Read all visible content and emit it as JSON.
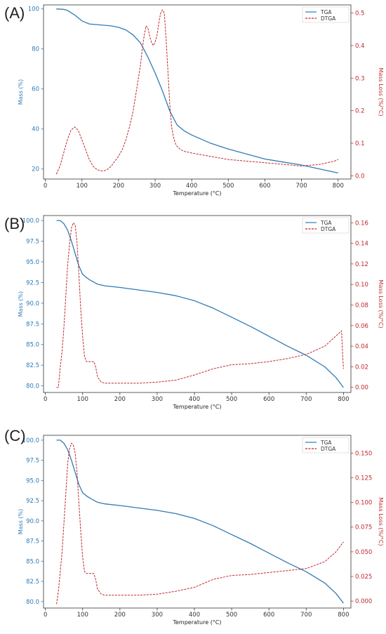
{
  "colors": {
    "tga": "#2f7bb5",
    "dtga": "#c0272d",
    "axis": "#333333"
  },
  "chart_data": [
    {
      "panel_label": "(A)",
      "type": "line",
      "xlabel": "Temperature (°C)",
      "ylabel": "Mass (%)",
      "y2label": "Mass Loss (%/°C)",
      "xlim": [
        -5,
        835
      ],
      "ylim": [
        15,
        102
      ],
      "y2lim": [
        -0.01,
        0.525
      ],
      "xticks": [
        0,
        100,
        200,
        300,
        400,
        500,
        600,
        700,
        800
      ],
      "yticks": [
        20,
        40,
        60,
        80,
        100
      ],
      "y2ticks": [
        0.0,
        0.1,
        0.2,
        0.3,
        0.4,
        0.5
      ],
      "xtick_labels": [
        "0",
        "100",
        "200",
        "300",
        "400",
        "500",
        "600",
        "700",
        "800"
      ],
      "ytick_labels": [
        "20",
        "40",
        "60",
        "80",
        "100"
      ],
      "y2tick_labels": [
        "0.0",
        "0.1",
        "0.2",
        "0.3",
        "0.4",
        "0.5"
      ],
      "legend": [
        "TGA",
        "DTGA"
      ],
      "legend_position": "top-right",
      "series": [
        {
          "name": "TGA",
          "axis": "left",
          "style": "solid",
          "x": [
            30,
            50,
            60,
            80,
            100,
            120,
            150,
            180,
            200,
            220,
            240,
            260,
            280,
            300,
            320,
            340,
            360,
            380,
            400,
            450,
            500,
            550,
            600,
            650,
            700,
            750,
            800
          ],
          "y": [
            100,
            99.8,
            99.3,
            97,
            94,
            92.5,
            92,
            91.5,
            90.8,
            89.5,
            87,
            83,
            76,
            68,
            59,
            49,
            42,
            39,
            37,
            33,
            30,
            27.5,
            25,
            23.5,
            22,
            20,
            18
          ]
        },
        {
          "name": "DTGA",
          "axis": "right",
          "style": "dashed",
          "x": [
            30,
            40,
            50,
            60,
            70,
            80,
            90,
            100,
            110,
            120,
            130,
            140,
            150,
            160,
            170,
            180,
            190,
            200,
            210,
            220,
            230,
            240,
            250,
            260,
            265,
            270,
            275,
            280,
            285,
            290,
            295,
            300,
            305,
            310,
            315,
            320,
            325,
            330,
            335,
            340,
            345,
            350,
            355,
            360,
            370,
            380,
            400,
            450,
            500,
            550,
            600,
            650,
            700,
            750,
            790,
            800
          ],
          "y": [
            0.005,
            0.03,
            0.07,
            0.11,
            0.14,
            0.15,
            0.14,
            0.11,
            0.08,
            0.05,
            0.03,
            0.02,
            0.015,
            0.015,
            0.02,
            0.03,
            0.045,
            0.06,
            0.08,
            0.11,
            0.15,
            0.2,
            0.27,
            0.34,
            0.39,
            0.43,
            0.46,
            0.455,
            0.43,
            0.41,
            0.4,
            0.41,
            0.43,
            0.47,
            0.5,
            0.51,
            0.5,
            0.42,
            0.32,
            0.22,
            0.15,
            0.12,
            0.1,
            0.09,
            0.08,
            0.075,
            0.07,
            0.06,
            0.05,
            0.045,
            0.04,
            0.035,
            0.03,
            0.035,
            0.045,
            0.05
          ]
        }
      ]
    },
    {
      "panel_label": "(B)",
      "type": "line",
      "xlabel": "Temperature (°C)",
      "ylabel": "Mass (%)",
      "y2label": "Mass Loss (%/°C)",
      "xlim": [
        -5,
        820
      ],
      "ylim": [
        79.2,
        100.6
      ],
      "y2lim": [
        -0.005,
        0.167
      ],
      "xticks": [
        0,
        100,
        200,
        300,
        400,
        500,
        600,
        700,
        800
      ],
      "yticks": [
        80.0,
        82.5,
        85.0,
        87.5,
        90.0,
        92.5,
        95.0,
        97.5,
        100.0
      ],
      "y2ticks": [
        0.0,
        0.02,
        0.04,
        0.06,
        0.08,
        0.1,
        0.12,
        0.14,
        0.16
      ],
      "xtick_labels": [
        "0",
        "100",
        "200",
        "300",
        "400",
        "500",
        "600",
        "700",
        "800"
      ],
      "ytick_labels": [
        "80.0",
        "82.5",
        "85.0",
        "87.5",
        "90.0",
        "92.5",
        "95.0",
        "97.5",
        "100.0"
      ],
      "y2tick_labels": [
        "0.00",
        "0.02",
        "0.04",
        "0.06",
        "0.08",
        "0.10",
        "0.12",
        "0.14",
        "0.16"
      ],
      "legend": [
        "TGA",
        "DTGA"
      ],
      "legend_position": "top-right",
      "series": [
        {
          "name": "TGA",
          "axis": "left",
          "style": "solid",
          "x": [
            30,
            40,
            50,
            60,
            70,
            80,
            90,
            100,
            110,
            120,
            140,
            160,
            200,
            250,
            300,
            350,
            400,
            450,
            500,
            550,
            600,
            650,
            700,
            750,
            780,
            800
          ],
          "y": [
            100,
            100,
            99.6,
            98.8,
            97.5,
            96,
            94.5,
            93.5,
            93.1,
            92.8,
            92.3,
            92.1,
            91.9,
            91.6,
            91.3,
            90.9,
            90.3,
            89.4,
            88.3,
            87.2,
            86.0,
            84.8,
            83.7,
            82.3,
            81.0,
            79.8
          ]
        },
        {
          "name": "DTGA",
          "axis": "right",
          "style": "dashed",
          "x": [
            30,
            35,
            40,
            45,
            50,
            55,
            60,
            65,
            70,
            75,
            80,
            85,
            90,
            95,
            100,
            105,
            110,
            120,
            130,
            135,
            140,
            150,
            160,
            180,
            200,
            250,
            300,
            350,
            400,
            450,
            500,
            550,
            600,
            650,
            700,
            750,
            780,
            795,
            798,
            800
          ],
          "y": [
            0.0,
            0.0,
            0.02,
            0.035,
            0.06,
            0.09,
            0.12,
            0.14,
            0.155,
            0.16,
            0.158,
            0.14,
            0.11,
            0.075,
            0.05,
            0.03,
            0.025,
            0.025,
            0.025,
            0.02,
            0.01,
            0.005,
            0.004,
            0.004,
            0.004,
            0.004,
            0.005,
            0.007,
            0.012,
            0.018,
            0.022,
            0.023,
            0.025,
            0.028,
            0.032,
            0.04,
            0.05,
            0.055,
            0.03,
            0.018
          ]
        }
      ]
    },
    {
      "panel_label": "(C)",
      "type": "line",
      "xlabel": "Temperature (°C)",
      "ylabel": "Mass (%)",
      "y2label": "Mass Loss (%/°C)",
      "xlim": [
        -5,
        820
      ],
      "ylim": [
        79.2,
        100.6
      ],
      "y2lim": [
        -0.007,
        0.168
      ],
      "xticks": [
        0,
        100,
        200,
        300,
        400,
        500,
        600,
        700,
        800
      ],
      "yticks": [
        80.0,
        82.5,
        85.0,
        87.5,
        90.0,
        92.5,
        95.0,
        97.5,
        100.0
      ],
      "y2ticks": [
        0.0,
        0.025,
        0.05,
        0.075,
        0.1,
        0.125,
        0.15
      ],
      "xtick_labels": [
        "0",
        "100",
        "200",
        "300",
        "400",
        "500",
        "600",
        "700",
        "800"
      ],
      "ytick_labels": [
        "80.0",
        "82.5",
        "85.0",
        "87.5",
        "90.0",
        "92.5",
        "95.0",
        "97.5",
        "100.0"
      ],
      "y2tick_labels": [
        "0.000",
        "0.025",
        "0.050",
        "0.075",
        "0.100",
        "0.125",
        "0.150"
      ],
      "legend": [
        "TGA",
        "DTGA"
      ],
      "legend_position": "top-right",
      "series": [
        {
          "name": "TGA",
          "axis": "left",
          "style": "solid",
          "x": [
            30,
            40,
            50,
            60,
            70,
            80,
            90,
            100,
            110,
            120,
            140,
            160,
            200,
            250,
            300,
            350,
            400,
            450,
            500,
            550,
            600,
            650,
            700,
            750,
            780,
            800
          ],
          "y": [
            100,
            100,
            99.6,
            98.8,
            97.5,
            96,
            94.5,
            93.5,
            93.1,
            92.8,
            92.3,
            92.1,
            91.9,
            91.6,
            91.3,
            90.9,
            90.3,
            89.4,
            88.3,
            87.2,
            86.0,
            84.8,
            83.7,
            82.3,
            81.0,
            79.8
          ]
        },
        {
          "name": "DTGA",
          "axis": "right",
          "style": "dashed",
          "x": [
            30,
            35,
            40,
            45,
            50,
            55,
            60,
            65,
            70,
            75,
            80,
            85,
            90,
            95,
            100,
            105,
            110,
            120,
            130,
            135,
            140,
            150,
            160,
            180,
            200,
            250,
            300,
            350,
            400,
            450,
            500,
            550,
            600,
            650,
            700,
            750,
            780,
            800
          ],
          "y": [
            -0.003,
            0.01,
            0.03,
            0.05,
            0.08,
            0.11,
            0.14,
            0.155,
            0.16,
            0.158,
            0.15,
            0.13,
            0.1,
            0.07,
            0.045,
            0.03,
            0.028,
            0.028,
            0.028,
            0.022,
            0.012,
            0.007,
            0.006,
            0.006,
            0.006,
            0.006,
            0.007,
            0.01,
            0.014,
            0.022,
            0.026,
            0.027,
            0.029,
            0.031,
            0.033,
            0.04,
            0.05,
            0.06
          ]
        }
      ]
    }
  ]
}
